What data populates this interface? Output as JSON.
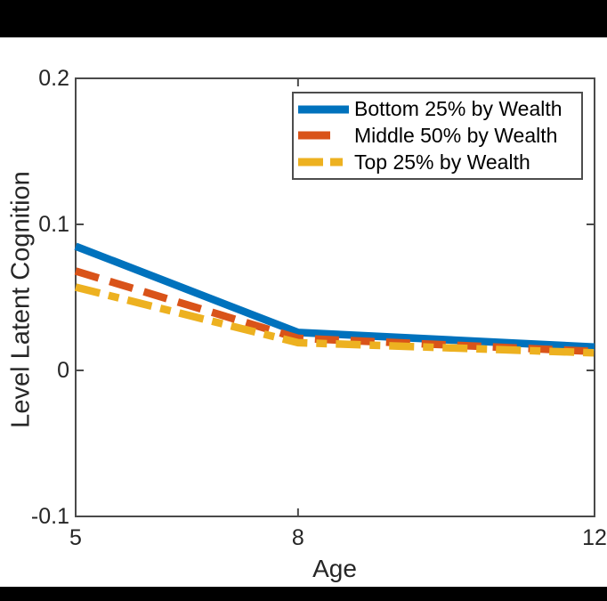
{
  "chart_data": {
    "type": "line",
    "title": "",
    "xlabel": "Age",
    "ylabel": "Level Latent Cognition",
    "x": [
      5,
      8,
      12
    ],
    "xlim": [
      5,
      12
    ],
    "ylim": [
      -0.1,
      0.2
    ],
    "xticks": [
      5,
      8,
      12
    ],
    "yticks": [
      0.2,
      0.1,
      0,
      -0.1
    ],
    "grid": false,
    "legend_position": "top-right",
    "series": [
      {
        "name": "Bottom 25% by Wealth",
        "values": [
          0.085,
          0.026,
          0.016
        ],
        "color": "#0072BD",
        "style": "solid"
      },
      {
        "name": "Middle 50% by Wealth",
        "values": [
          0.068,
          0.022,
          0.013
        ],
        "color": "#D95319",
        "style": "dashed"
      },
      {
        "name": "Top 25% by Wealth",
        "values": [
          0.057,
          0.019,
          0.012
        ],
        "color": "#EDB120",
        "style": "dashdot"
      }
    ]
  },
  "colors": {
    "axis": "#4a4a4a",
    "tick_text": "#262626",
    "background": "#ffffff",
    "letterbox": "#000000",
    "legend_border": "#4d4d4d"
  }
}
